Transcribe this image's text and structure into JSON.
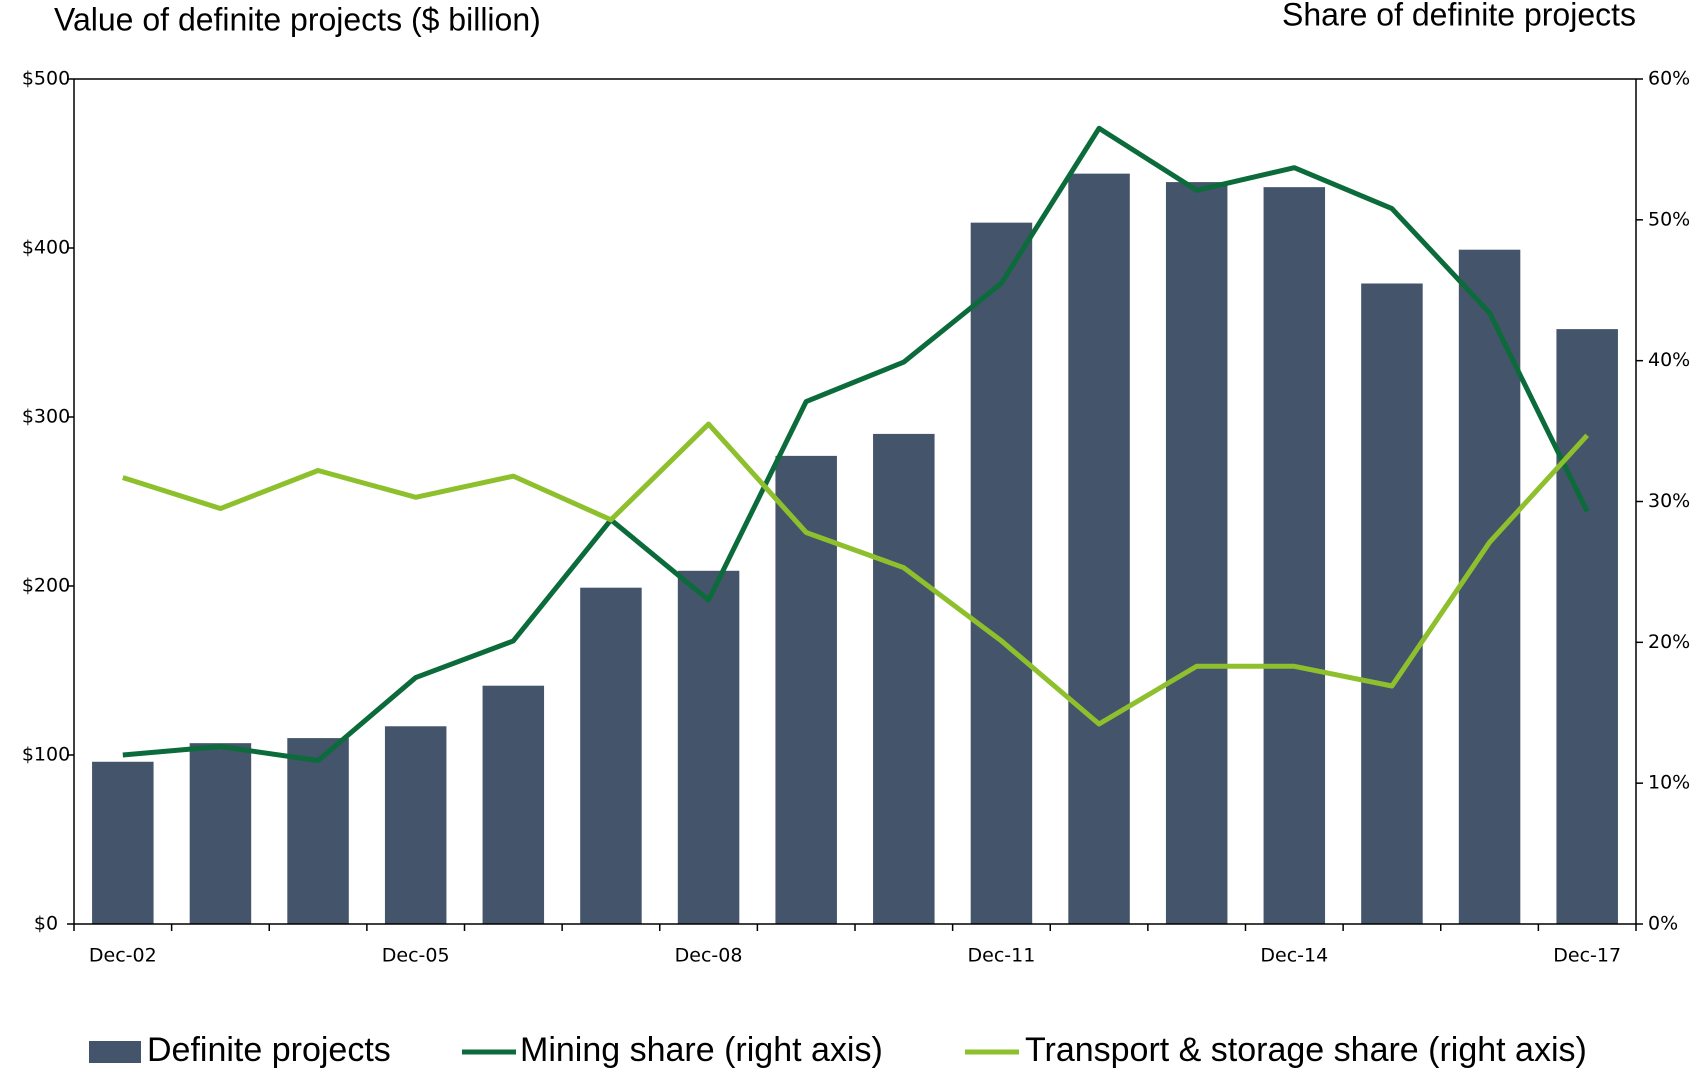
{
  "chart_data": {
    "type": "bar_line",
    "title": "Value of definite projects ($ billion)",
    "y2_title": "Share of definite projects",
    "categories": [
      "Dec-02",
      null,
      null,
      "Dec-05",
      null,
      null,
      "Dec-08",
      null,
      null,
      "Dec-11",
      null,
      null,
      "Dec-14",
      null,
      null,
      "Dec-17"
    ],
    "series": [
      {
        "name": "Definite projects",
        "type": "bar",
        "color": "#44546a",
        "values": [
          96,
          107,
          110,
          117,
          141,
          199,
          209,
          277,
          290,
          415,
          444,
          439,
          436,
          379,
          399,
          352
        ]
      },
      {
        "name": "Mining share (right axis)",
        "type": "line",
        "axis": "y2",
        "color": "#0b6b3a",
        "values": [
          12.0,
          12.6,
          11.6,
          17.5,
          20.1,
          28.7,
          23.0,
          37.1,
          39.9,
          45.5,
          56.5,
          52.1,
          53.7,
          50.8,
          43.4,
          29.3
        ]
      },
      {
        "name": "Transport & storage share (right axis)",
        "type": "line",
        "axis": "y2",
        "color": "#8dc02c",
        "values": [
          31.7,
          29.5,
          32.2,
          30.3,
          31.8,
          28.7,
          35.5,
          27.8,
          25.3,
          20.1,
          14.2,
          18.3,
          18.3,
          16.9,
          27.1,
          34.7
        ]
      }
    ],
    "ylim": [
      0,
      500
    ],
    "yticks": [
      {
        "value": 0,
        "label": "$0"
      },
      {
        "value": 100,
        "label": "$100"
      },
      {
        "value": 200,
        "label": "$200"
      },
      {
        "value": 300,
        "label": "$300"
      },
      {
        "value": 400,
        "label": "$400"
      },
      {
        "value": 500,
        "label": "$500"
      }
    ],
    "y2lim": [
      0,
      60
    ],
    "y2ticks": [
      {
        "value": 0,
        "label": "0%"
      },
      {
        "value": 10,
        "label": "10%"
      },
      {
        "value": 20,
        "label": "20%"
      },
      {
        "value": 30,
        "label": "30%"
      },
      {
        "value": 40,
        "label": "40%"
      },
      {
        "value": 50,
        "label": "50%"
      },
      {
        "value": 60,
        "label": "60%"
      }
    ],
    "grid": false,
    "legend": "bottom"
  }
}
